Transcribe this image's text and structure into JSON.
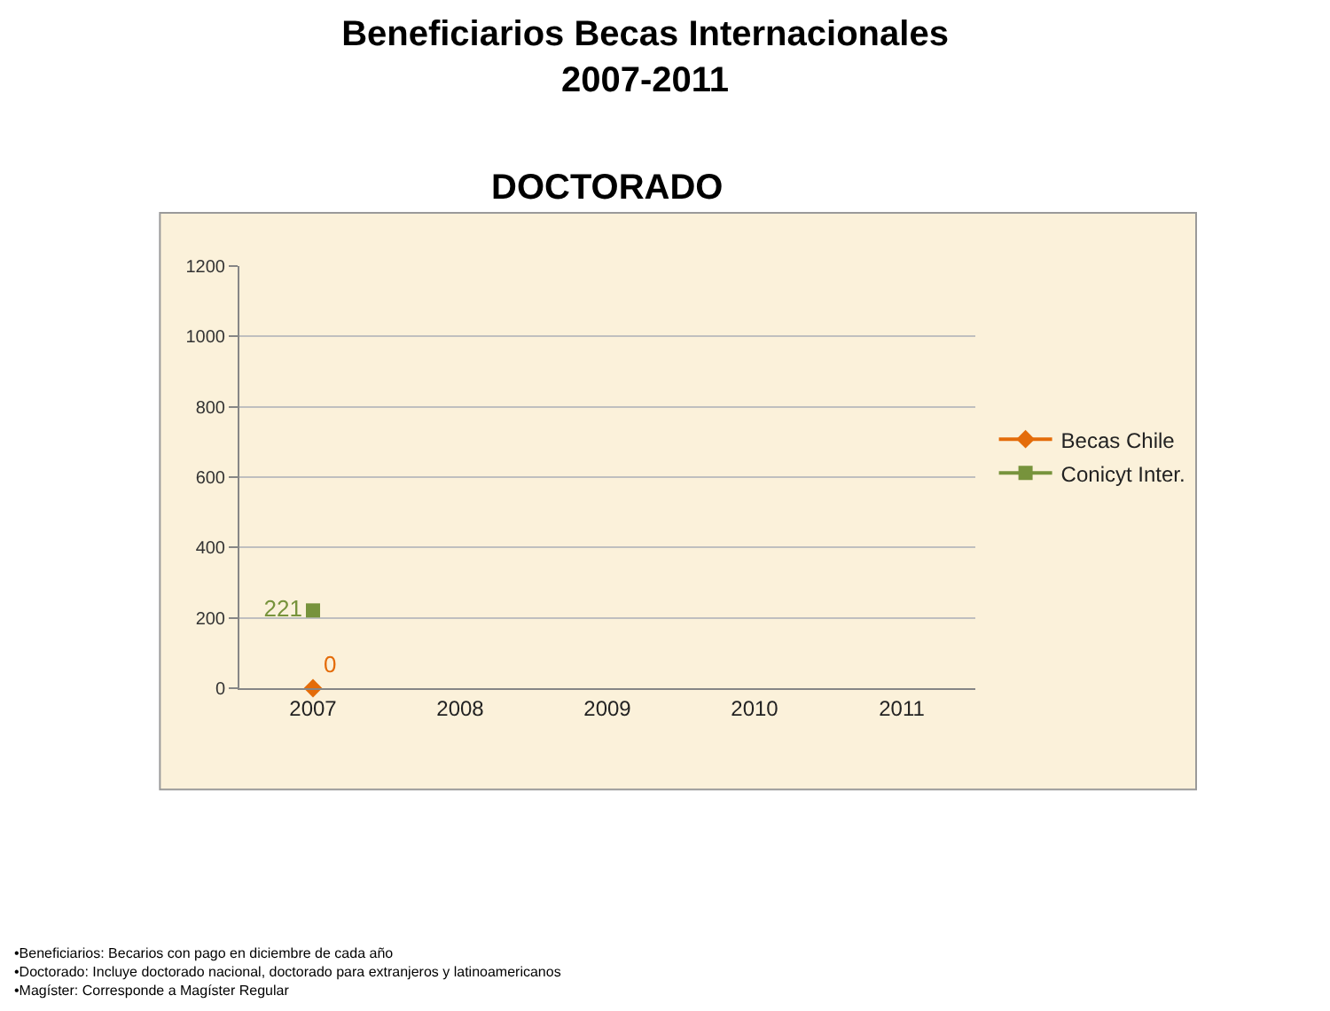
{
  "chart_data": {
    "type": "line",
    "title": "Beneficiarios Becas Internacionales\n2007-2011",
    "subtitle": "DOCTORADO",
    "categories": [
      "2007",
      "2008",
      "2009",
      "2010",
      "2011"
    ],
    "series": [
      {
        "name": "Becas Chile",
        "color": "#e46c0a",
        "marker": "diamond",
        "values": [
          0,
          null,
          null,
          null,
          null
        ]
      },
      {
        "name": "Conicyt Inter.",
        "color": "#77933c",
        "marker": "square",
        "values": [
          221,
          null,
          null,
          null,
          null
        ]
      }
    ],
    "ylim": [
      0,
      1200
    ],
    "yticks": [
      0,
      200,
      400,
      600,
      800,
      1000,
      1200
    ],
    "grid": "y",
    "legend": "right",
    "data_labels": true,
    "annotations": [
      "•Beneficiarios: Becarios con pago en diciembre de cada año",
      "•Doctorado: Incluye doctorado nacional, doctorado para extranjeros y latinoamericanos",
      "•Magíster: Corresponde a Magíster Regular"
    ]
  }
}
